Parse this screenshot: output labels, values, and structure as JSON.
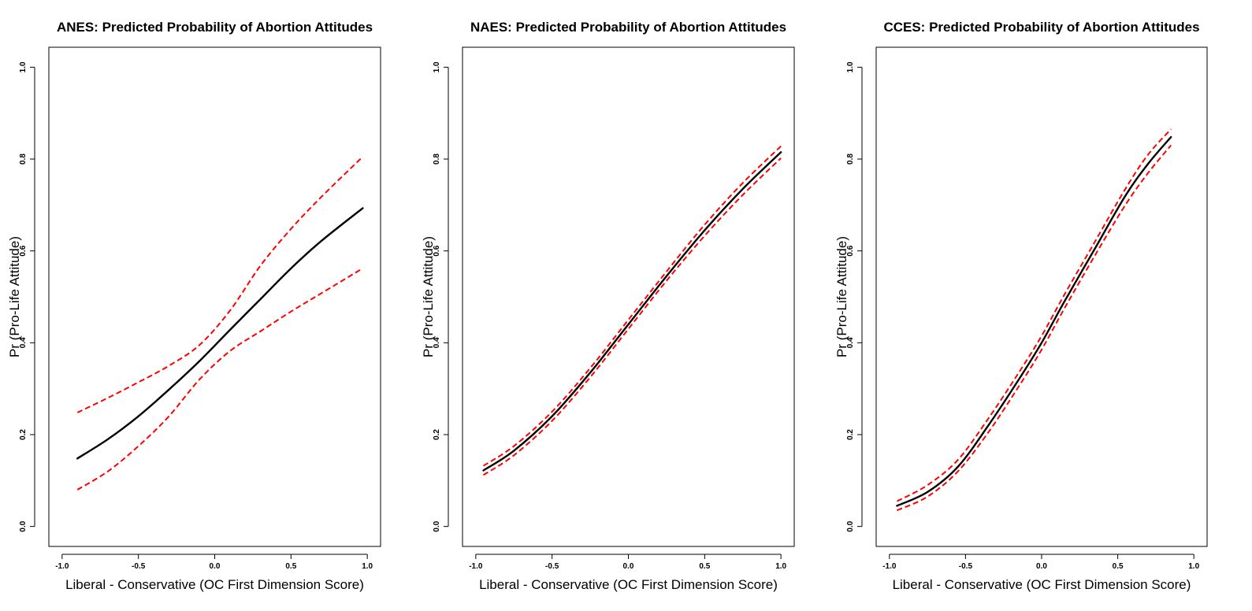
{
  "colors": {
    "fit": "#000000",
    "ci": "#ff0000"
  },
  "chart_data": [
    {
      "type": "line",
      "title": "ANES: Predicted Probability of Abortion Attitudes",
      "xlabel": "Liberal - Conservative (OC First Dimension Score)",
      "ylabel": "Pr (Pro-Life Attitude)",
      "xlim": [
        -1.0,
        1.0
      ],
      "ylim": [
        0.0,
        1.0
      ],
      "xticks": [
        "-1.0",
        "-0.5",
        "0.0",
        "0.5",
        "1.0"
      ],
      "yticks": [
        "0.0",
        "0.2",
        "0.4",
        "0.6",
        "0.8",
        "1.0"
      ],
      "grid": false,
      "x": [
        -0.9,
        -0.7,
        -0.5,
        -0.3,
        -0.1,
        0.1,
        0.3,
        0.5,
        0.7,
        0.97
      ],
      "series": [
        {
          "role": "estimate",
          "values": [
            0.148,
            0.19,
            0.24,
            0.298,
            0.36,
            0.428,
            0.495,
            0.562,
            0.622,
            0.693
          ]
        },
        {
          "role": "upper_ci",
          "values": [
            0.248,
            0.28,
            0.314,
            0.35,
            0.395,
            0.47,
            0.568,
            0.648,
            0.718,
            0.805
          ]
        },
        {
          "role": "lower_ci",
          "values": [
            0.08,
            0.12,
            0.175,
            0.24,
            0.32,
            0.382,
            0.425,
            0.468,
            0.508,
            0.562
          ]
        }
      ]
    },
    {
      "type": "line",
      "title": "NAES: Predicted Probability of Abortion Attitudes",
      "xlabel": "Liberal - Conservative (OC First Dimension Score)",
      "ylabel": "Pr (Pro-Life Attitude)",
      "xlim": [
        -1.0,
        1.0
      ],
      "ylim": [
        0.0,
        1.0
      ],
      "xticks": [
        "-1.0",
        "-0.5",
        "0.0",
        "0.5",
        "1.0"
      ],
      "yticks": [
        "0.0",
        "0.2",
        "0.4",
        "0.6",
        "0.8",
        "1.0"
      ],
      "grid": false,
      "x": [
        -0.95,
        -0.75,
        -0.5,
        -0.25,
        0.0,
        0.25,
        0.5,
        0.75,
        1.0
      ],
      "series": [
        {
          "role": "estimate",
          "values": [
            0.122,
            0.165,
            0.24,
            0.335,
            0.44,
            0.545,
            0.645,
            0.735,
            0.815
          ]
        },
        {
          "role": "upper_ci",
          "values": [
            0.132,
            0.175,
            0.25,
            0.345,
            0.45,
            0.555,
            0.657,
            0.748,
            0.828
          ]
        },
        {
          "role": "lower_ci",
          "values": [
            0.112,
            0.155,
            0.23,
            0.325,
            0.43,
            0.535,
            0.633,
            0.722,
            0.802
          ]
        }
      ]
    },
    {
      "type": "line",
      "title": "CCES: Predicted Probability of Abortion Attitudes",
      "xlabel": "Liberal - Conservative (OC First Dimension Score)",
      "ylabel": "Pr (Pro-Life Attitude)",
      "xlim": [
        -1.0,
        1.0
      ],
      "ylim": [
        0.0,
        1.0
      ],
      "xticks": [
        "-1.0",
        "-0.5",
        "0.0",
        "0.5",
        "1.0"
      ],
      "yticks": [
        "0.0",
        "0.2",
        "0.4",
        "0.6",
        "0.8",
        "1.0"
      ],
      "grid": false,
      "x": [
        -0.95,
        -0.75,
        -0.55,
        -0.35,
        -0.15,
        0.0,
        0.15,
        0.35,
        0.55,
        0.7,
        0.85
      ],
      "series": [
        {
          "role": "estimate",
          "values": [
            0.045,
            0.075,
            0.13,
            0.22,
            0.32,
            0.4,
            0.49,
            0.605,
            0.72,
            0.79,
            0.848
          ]
        },
        {
          "role": "upper_ci",
          "values": [
            0.055,
            0.09,
            0.145,
            0.235,
            0.335,
            0.415,
            0.505,
            0.62,
            0.735,
            0.81,
            0.865
          ]
        },
        {
          "role": "lower_ci",
          "values": [
            0.035,
            0.065,
            0.12,
            0.205,
            0.305,
            0.385,
            0.475,
            0.59,
            0.7,
            0.77,
            0.83
          ]
        }
      ]
    }
  ]
}
